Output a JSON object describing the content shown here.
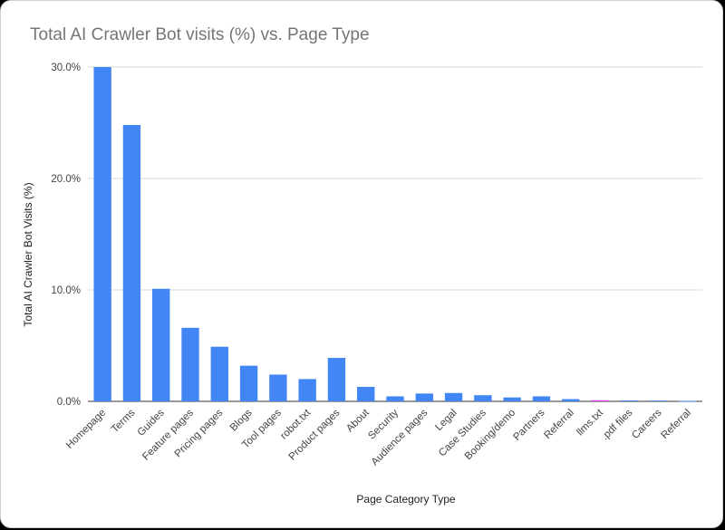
{
  "chart_data": {
    "type": "bar",
    "title": "Total AI Crawler Bot visits (%) vs. Page Type",
    "xlabel": "Page Category Type",
    "ylabel": "Total AI Crawler Bot Visits (%)",
    "ylim": [
      0,
      30
    ],
    "yticks": [
      "0.0%",
      "10.0%",
      "20.0%",
      "30.0%"
    ],
    "grid": true,
    "legend": "none",
    "categories": [
      "Homepage",
      "Terms",
      "Guides",
      "Feature pages",
      "Pricing pages",
      "Blogs",
      "Tool pages",
      "robot.txt",
      "Product pages",
      "About",
      "Security",
      "Audience pages",
      "Legal",
      "Case Studies",
      "Booking/demo",
      "Partners",
      "Referral",
      "llms.txt",
      ".pdf files",
      "Careers",
      "Referral"
    ],
    "values": [
      30.0,
      24.8,
      10.1,
      6.6,
      4.9,
      3.2,
      2.4,
      2.0,
      3.9,
      1.3,
      0.45,
      0.7,
      0.75,
      0.55,
      0.35,
      0.45,
      0.2,
      0.1,
      0.08,
      0.07,
      0.04
    ],
    "colors": [
      "#4285f4",
      "#4285f4",
      "#4285f4",
      "#4285f4",
      "#4285f4",
      "#4285f4",
      "#4285f4",
      "#4285f4",
      "#4285f4",
      "#4285f4",
      "#4285f4",
      "#4285f4",
      "#4285f4",
      "#4285f4",
      "#4285f4",
      "#4285f4",
      "#4285f4",
      "#e040fb",
      "#4285f4",
      "#4285f4",
      "#4285f4"
    ]
  }
}
